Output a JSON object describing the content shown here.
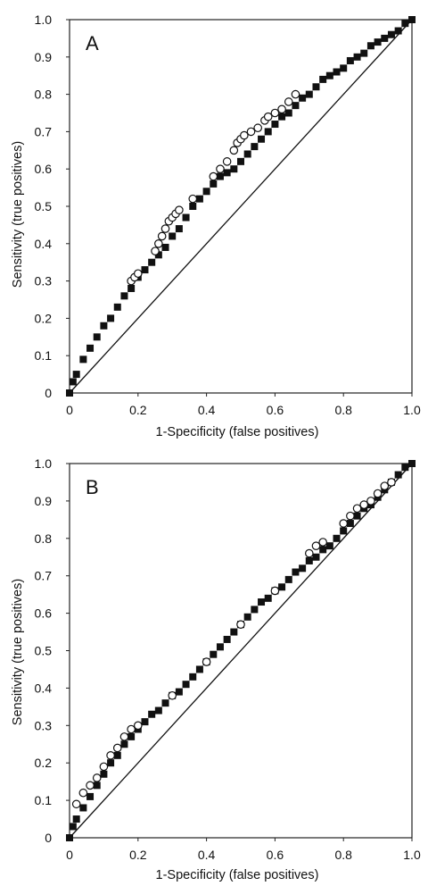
{
  "chart_data": [
    {
      "type": "scatter",
      "panel_label": "A",
      "xlabel": "1-Specificity (false positives)",
      "ylabel": "Sensitivity (true positives)",
      "xlim": [
        0,
        1
      ],
      "ylim": [
        0,
        1
      ],
      "x_ticks": [
        "0",
        "0.2",
        "0.4",
        "0.6",
        "0.8",
        "1.0"
      ],
      "y_ticks": [
        "0",
        "0.1",
        "0.2",
        "0.3",
        "0.4",
        "0.5",
        "0.6",
        "0.7",
        "0.8",
        "0.9",
        "1.0"
      ],
      "reference_line": [
        [
          0,
          0
        ],
        [
          1,
          1
        ]
      ],
      "series": [
        {
          "marker": "filled-square",
          "color": "#111111",
          "x": [
            0,
            0.01,
            0.02,
            0.04,
            0.06,
            0.08,
            0.1,
            0.12,
            0.14,
            0.16,
            0.18,
            0.2,
            0.22,
            0.24,
            0.26,
            0.28,
            0.3,
            0.32,
            0.34,
            0.36,
            0.38,
            0.4,
            0.42,
            0.44,
            0.46,
            0.48,
            0.5,
            0.52,
            0.54,
            0.56,
            0.58,
            0.6,
            0.62,
            0.64,
            0.66,
            0.68,
            0.7,
            0.72,
            0.74,
            0.76,
            0.78,
            0.8,
            0.82,
            0.84,
            0.86,
            0.88,
            0.9,
            0.92,
            0.94,
            0.96,
            0.98,
            1.0
          ],
          "y": [
            0,
            0.03,
            0.05,
            0.09,
            0.12,
            0.15,
            0.18,
            0.2,
            0.23,
            0.26,
            0.28,
            0.31,
            0.33,
            0.35,
            0.37,
            0.39,
            0.42,
            0.44,
            0.47,
            0.5,
            0.52,
            0.54,
            0.56,
            0.58,
            0.59,
            0.6,
            0.62,
            0.64,
            0.66,
            0.68,
            0.7,
            0.72,
            0.74,
            0.75,
            0.77,
            0.79,
            0.8,
            0.82,
            0.84,
            0.85,
            0.86,
            0.87,
            0.89,
            0.9,
            0.91,
            0.93,
            0.94,
            0.95,
            0.96,
            0.97,
            0.99,
            1.0
          ]
        },
        {
          "marker": "open-circle",
          "color": "#111111",
          "x": [
            0.18,
            0.19,
            0.2,
            0.25,
            0.26,
            0.27,
            0.28,
            0.29,
            0.3,
            0.31,
            0.32,
            0.36,
            0.42,
            0.44,
            0.46,
            0.48,
            0.49,
            0.5,
            0.51,
            0.53,
            0.55,
            0.57,
            0.58,
            0.6,
            0.62,
            0.64,
            0.66
          ],
          "y": [
            0.3,
            0.31,
            0.32,
            0.38,
            0.4,
            0.42,
            0.44,
            0.46,
            0.47,
            0.48,
            0.49,
            0.52,
            0.58,
            0.6,
            0.62,
            0.65,
            0.67,
            0.68,
            0.69,
            0.7,
            0.71,
            0.73,
            0.74,
            0.75,
            0.76,
            0.78,
            0.8
          ]
        }
      ]
    },
    {
      "type": "scatter",
      "panel_label": "B",
      "xlabel": "1-Specificity (false positives)",
      "ylabel": "Sensitivity (true positives)",
      "xlim": [
        0,
        1
      ],
      "ylim": [
        0,
        1
      ],
      "x_ticks": [
        "0",
        "0.2",
        "0.4",
        "0.6",
        "0.8",
        "1.0"
      ],
      "y_ticks": [
        "0",
        "0.1",
        "0.2",
        "0.3",
        "0.4",
        "0.5",
        "0.6",
        "0.7",
        "0.8",
        "0.9",
        "1.0"
      ],
      "reference_line": [
        [
          0,
          0
        ],
        [
          1,
          1
        ]
      ],
      "series": [
        {
          "marker": "filled-square",
          "color": "#111111",
          "x": [
            0,
            0.01,
            0.02,
            0.04,
            0.06,
            0.08,
            0.1,
            0.12,
            0.14,
            0.16,
            0.18,
            0.2,
            0.22,
            0.24,
            0.26,
            0.28,
            0.3,
            0.32,
            0.34,
            0.36,
            0.38,
            0.4,
            0.42,
            0.44,
            0.46,
            0.48,
            0.5,
            0.52,
            0.54,
            0.56,
            0.58,
            0.6,
            0.62,
            0.64,
            0.66,
            0.68,
            0.7,
            0.72,
            0.74,
            0.76,
            0.78,
            0.8,
            0.82,
            0.84,
            0.86,
            0.88,
            0.9,
            0.92,
            0.94,
            0.96,
            0.98,
            1.0
          ],
          "y": [
            0,
            0.03,
            0.05,
            0.08,
            0.11,
            0.14,
            0.17,
            0.2,
            0.22,
            0.25,
            0.27,
            0.29,
            0.31,
            0.33,
            0.34,
            0.36,
            0.38,
            0.39,
            0.41,
            0.43,
            0.45,
            0.47,
            0.49,
            0.51,
            0.53,
            0.55,
            0.57,
            0.59,
            0.61,
            0.63,
            0.64,
            0.66,
            0.67,
            0.69,
            0.71,
            0.72,
            0.74,
            0.75,
            0.77,
            0.78,
            0.8,
            0.82,
            0.84,
            0.86,
            0.88,
            0.89,
            0.91,
            0.93,
            0.95,
            0.97,
            0.99,
            1.0
          ]
        },
        {
          "marker": "open-circle",
          "color": "#111111",
          "x": [
            0.02,
            0.04,
            0.06,
            0.08,
            0.1,
            0.12,
            0.14,
            0.16,
            0.18,
            0.2,
            0.3,
            0.4,
            0.5,
            0.6,
            0.7,
            0.72,
            0.74,
            0.8,
            0.82,
            0.84,
            0.86,
            0.88,
            0.9,
            0.92,
            0.94
          ],
          "y": [
            0.09,
            0.12,
            0.14,
            0.16,
            0.19,
            0.22,
            0.24,
            0.27,
            0.29,
            0.3,
            0.38,
            0.47,
            0.57,
            0.66,
            0.76,
            0.78,
            0.79,
            0.84,
            0.86,
            0.88,
            0.89,
            0.9,
            0.92,
            0.94,
            0.95
          ]
        }
      ]
    }
  ]
}
